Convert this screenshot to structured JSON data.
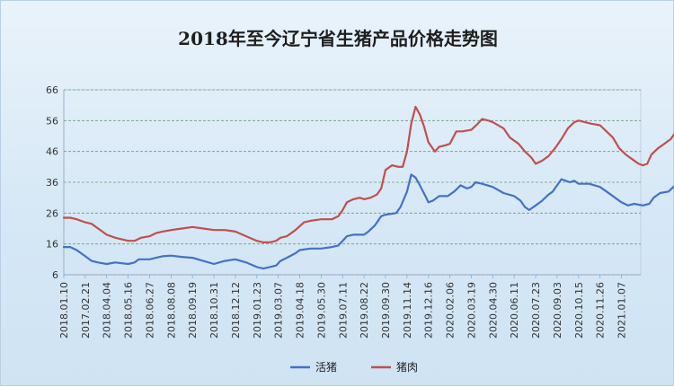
{
  "chart_data": {
    "type": "line",
    "title": "2018年至今辽宁省生猪产品价格走势图",
    "xlabel": "",
    "ylabel": "",
    "ylim": [
      6,
      66
    ],
    "yticks": [
      6,
      16,
      26,
      36,
      46,
      56,
      66
    ],
    "grid": true,
    "legend_position": "bottom",
    "x_tick_labels": [
      "2018.01.10",
      "2017.02.21",
      "2018.04.04",
      "2018.05.16",
      "2018.06.27",
      "2018.08.08",
      "2018.09.19",
      "2018.10.31",
      "2018.12.12",
      "2019.01.23",
      "2019.03.07",
      "2019.04.18",
      "2019.05.30",
      "2019.07.11",
      "2019.08.22",
      "2019.09.30",
      "2019.11.14",
      "2019.12.16",
      "2020.02.06",
      "2020.03.19",
      "2020.04.30",
      "2020.06.11",
      "2020.07.23",
      "2020.09.03",
      "2020.10.15",
      "2020.11.26",
      "2021.01.07"
    ],
    "series": [
      {
        "name": "活猪",
        "color": "#4472c4",
        "values": [
          [
            0,
            15
          ],
          [
            0.3,
            15
          ],
          [
            0.6,
            14
          ],
          [
            1.0,
            12
          ],
          [
            1.3,
            10.5
          ],
          [
            1.6,
            10
          ],
          [
            2.0,
            9.5
          ],
          [
            2.4,
            10
          ],
          [
            3.0,
            9.5
          ],
          [
            3.3,
            10
          ],
          [
            3.5,
            11
          ],
          [
            4.0,
            11
          ],
          [
            4.3,
            11.5
          ],
          [
            4.6,
            12
          ],
          [
            5.0,
            12.2
          ],
          [
            5.5,
            11.8
          ],
          [
            6.0,
            11.5
          ],
          [
            6.5,
            10.5
          ],
          [
            7.0,
            9.5
          ],
          [
            7.5,
            10.5
          ],
          [
            8.0,
            11
          ],
          [
            8.5,
            10
          ],
          [
            9.0,
            8.5
          ],
          [
            9.3,
            8
          ],
          [
            9.6,
            8.5
          ],
          [
            9.9,
            9
          ],
          [
            10.1,
            10.5
          ],
          [
            10.4,
            11.5
          ],
          [
            10.8,
            13
          ],
          [
            11.0,
            14
          ],
          [
            11.5,
            14.5
          ],
          [
            12.0,
            14.5
          ],
          [
            12.5,
            15
          ],
          [
            12.8,
            15.5
          ],
          [
            13.0,
            17
          ],
          [
            13.2,
            18.5
          ],
          [
            13.5,
            19
          ],
          [
            14.0,
            19
          ],
          [
            14.2,
            20
          ],
          [
            14.5,
            22
          ],
          [
            14.8,
            25
          ],
          [
            15.0,
            25.5
          ],
          [
            15.5,
            26
          ],
          [
            15.7,
            28
          ],
          [
            16.0,
            33
          ],
          [
            16.2,
            38.5
          ],
          [
            16.4,
            37.5
          ],
          [
            16.6,
            35
          ],
          [
            16.9,
            31
          ],
          [
            17.0,
            29.5
          ],
          [
            17.2,
            30
          ],
          [
            17.5,
            31.5
          ],
          [
            17.9,
            31.5
          ],
          [
            18.2,
            33
          ],
          [
            18.5,
            35
          ],
          [
            18.8,
            34
          ],
          [
            19.0,
            34.5
          ],
          [
            19.2,
            36
          ],
          [
            19.5,
            35.5
          ],
          [
            20.0,
            34.5
          ],
          [
            20.5,
            32.5
          ],
          [
            21.0,
            31.5
          ],
          [
            21.3,
            30
          ],
          [
            21.5,
            28
          ],
          [
            21.7,
            27
          ],
          [
            22.0,
            28.5
          ],
          [
            22.3,
            30
          ],
          [
            22.6,
            32
          ],
          [
            22.8,
            33
          ],
          [
            23.0,
            35
          ],
          [
            23.2,
            37
          ],
          [
            23.4,
            36.5
          ],
          [
            23.6,
            36
          ],
          [
            23.8,
            36.5
          ],
          [
            24.0,
            35.5
          ],
          [
            24.5,
            35.5
          ],
          [
            25.0,
            34.5
          ],
          [
            25.5,
            32
          ],
          [
            26.0,
            29.5
          ],
          [
            26.3,
            28.5
          ],
          [
            26.6,
            29
          ],
          [
            27.0,
            28.5
          ],
          [
            27.3,
            29
          ],
          [
            27.5,
            31
          ],
          [
            27.8,
            32.5
          ],
          [
            28.2,
            33
          ],
          [
            28.5,
            35
          ],
          [
            28.7,
            36
          ],
          [
            28.9,
            36.5
          ]
        ]
      },
      {
        "name": "猪肉",
        "color": "#c0504d",
        "values": [
          [
            0,
            24.5
          ],
          [
            0.3,
            24.5
          ],
          [
            0.6,
            24
          ],
          [
            1.0,
            23
          ],
          [
            1.3,
            22.5
          ],
          [
            1.6,
            21
          ],
          [
            2.0,
            19
          ],
          [
            2.4,
            18
          ],
          [
            3.0,
            17
          ],
          [
            3.3,
            17
          ],
          [
            3.6,
            18
          ],
          [
            4.0,
            18.5
          ],
          [
            4.3,
            19.5
          ],
          [
            4.6,
            20
          ],
          [
            5.0,
            20.5
          ],
          [
            5.5,
            21
          ],
          [
            6.0,
            21.5
          ],
          [
            6.5,
            21
          ],
          [
            7.0,
            20.5
          ],
          [
            7.5,
            20.5
          ],
          [
            8.0,
            20
          ],
          [
            8.5,
            18.5
          ],
          [
            9.0,
            17
          ],
          [
            9.3,
            16.5
          ],
          [
            9.6,
            16.5
          ],
          [
            9.9,
            17
          ],
          [
            10.1,
            18
          ],
          [
            10.4,
            18.5
          ],
          [
            10.8,
            20.5
          ],
          [
            11.2,
            23
          ],
          [
            11.5,
            23.5
          ],
          [
            12.0,
            24
          ],
          [
            12.5,
            24
          ],
          [
            12.8,
            25
          ],
          [
            13.0,
            27
          ],
          [
            13.2,
            29.5
          ],
          [
            13.5,
            30.5
          ],
          [
            13.8,
            31
          ],
          [
            14.0,
            30.5
          ],
          [
            14.3,
            31
          ],
          [
            14.6,
            32
          ],
          [
            14.8,
            34
          ],
          [
            15.0,
            40
          ],
          [
            15.3,
            41.5
          ],
          [
            15.6,
            41
          ],
          [
            15.8,
            41
          ],
          [
            16.0,
            46
          ],
          [
            16.2,
            55
          ],
          [
            16.4,
            60.5
          ],
          [
            16.6,
            58
          ],
          [
            16.8,
            54
          ],
          [
            17.0,
            49
          ],
          [
            17.3,
            46
          ],
          [
            17.5,
            47.5
          ],
          [
            17.8,
            48
          ],
          [
            18.0,
            48.5
          ],
          [
            18.3,
            52.5
          ],
          [
            18.6,
            52.5
          ],
          [
            19.0,
            53
          ],
          [
            19.3,
            55
          ],
          [
            19.5,
            56.5
          ],
          [
            19.8,
            56
          ],
          [
            20.0,
            55.5
          ],
          [
            20.5,
            53.5
          ],
          [
            20.8,
            50.5
          ],
          [
            21.2,
            48.5
          ],
          [
            21.5,
            46
          ],
          [
            21.8,
            44
          ],
          [
            22.0,
            42
          ],
          [
            22.3,
            43
          ],
          [
            22.6,
            44.5
          ],
          [
            22.9,
            47
          ],
          [
            23.2,
            50
          ],
          [
            23.5,
            53.5
          ],
          [
            23.8,
            55.5
          ],
          [
            24.0,
            56
          ],
          [
            24.3,
            55.5
          ],
          [
            24.6,
            55
          ],
          [
            25.0,
            54.5
          ],
          [
            25.3,
            52.5
          ],
          [
            25.6,
            50.5
          ],
          [
            25.9,
            47
          ],
          [
            26.2,
            45
          ],
          [
            26.5,
            43.5
          ],
          [
            26.8,
            42
          ],
          [
            27.0,
            41.5
          ],
          [
            27.2,
            42
          ],
          [
            27.4,
            45
          ],
          [
            27.7,
            47
          ],
          [
            28.0,
            48.5
          ],
          [
            28.3,
            50
          ],
          [
            28.6,
            53
          ],
          [
            28.9,
            53.5
          ]
        ]
      }
    ]
  }
}
